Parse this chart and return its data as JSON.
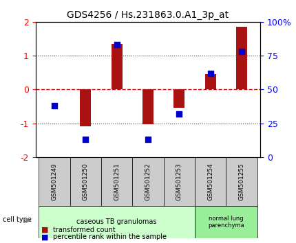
{
  "title": "GDS4256 / Hs.231863.0.A1_3p_at",
  "samples": [
    "GSM501249",
    "GSM501250",
    "GSM501251",
    "GSM501252",
    "GSM501253",
    "GSM501254",
    "GSM501255"
  ],
  "transformed_counts": [
    0.0,
    -1.1,
    1.35,
    -1.02,
    -0.55,
    0.45,
    1.85
  ],
  "percentile_ranks": [
    38,
    13,
    83,
    13,
    32,
    62,
    78
  ],
  "ylim_left": [
    -2,
    2
  ],
  "ylim_right": [
    0,
    100
  ],
  "bar_color": "#aa1111",
  "dot_color": "#0000cc",
  "zero_line_color": "#cc0000",
  "dotted_line_color": "#333333",
  "group1_label": "caseous TB granulomas",
  "group2_label": "normal lung\nparenchyma",
  "group1_indices": [
    0,
    1,
    2,
    3,
    4
  ],
  "group2_indices": [
    5,
    6
  ],
  "group1_color": "#ccffcc",
  "group2_color": "#99ee99",
  "tick_bg_color": "#cccccc",
  "legend_bar_label": "transformed count",
  "legend_dot_label": "percentile rank within the sample",
  "cell_type_label": "cell type",
  "right_tick_labels": [
    "0",
    "25",
    "50",
    "75",
    "100%"
  ],
  "right_tick_values": [
    0,
    25,
    50,
    75,
    100
  ]
}
